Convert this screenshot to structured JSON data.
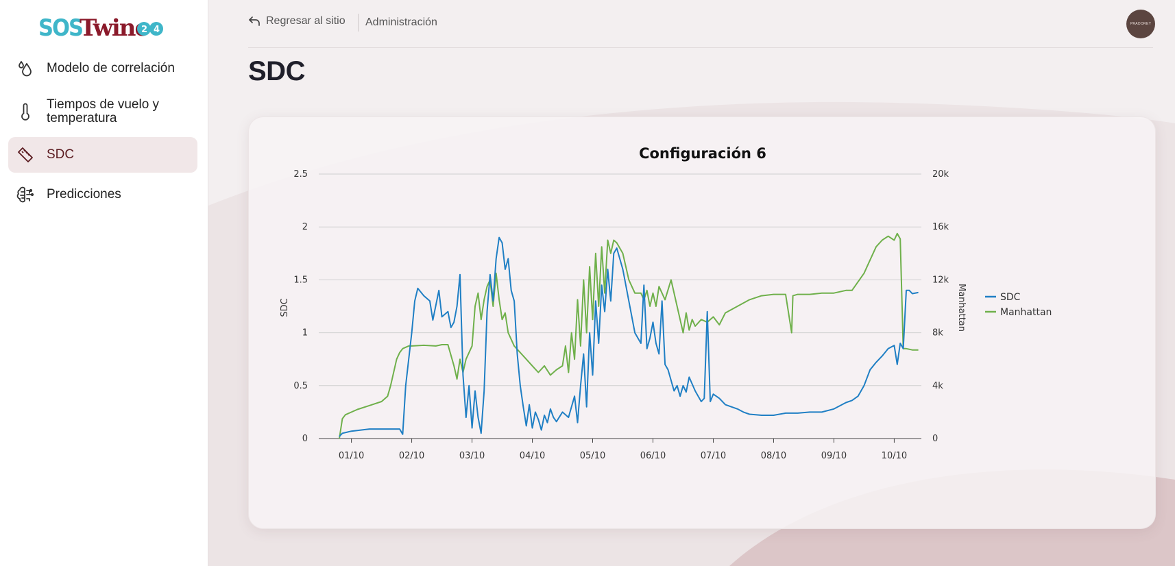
{
  "app": {
    "logo_text": "SOSTwine",
    "logo_badge": "24"
  },
  "sidebar": {
    "items": [
      {
        "label": "Modelo de correlación",
        "icon": "drops-icon",
        "active": false
      },
      {
        "label": "Tiempos de vuelo y temperatura",
        "icon": "thermometer-icon",
        "active": false
      },
      {
        "label": "SDC",
        "icon": "ruler-icon",
        "active": true
      },
      {
        "label": "Predicciones",
        "icon": "brain-icon",
        "active": false
      }
    ]
  },
  "topbar": {
    "back_label": "Regresar al sitio",
    "admin_label": "Administración",
    "avatar_text": "PRADOREY"
  },
  "page": {
    "title": "SDC"
  },
  "colors": {
    "sdc": "#1f7fc4",
    "manhattan": "#6fb04b",
    "active_nav_bg": "#f1e7e8",
    "brand_red": "#8b1a2b",
    "brand_teal": "#3fb6c9"
  },
  "chart_data": {
    "type": "line",
    "title": "Configuración 6",
    "ylabel": "SDC",
    "y2label": "Manhattan",
    "ylim": [
      0,
      2.5
    ],
    "y2lim": [
      0,
      20000
    ],
    "yticks": [
      "0",
      "0.5",
      "1",
      "1.5",
      "2",
      "2.5"
    ],
    "y2ticks": [
      "0",
      "4k",
      "8k",
      "12k",
      "16k",
      "20k"
    ],
    "xticks": [
      "01/10",
      "02/10",
      "03/10",
      "04/10",
      "05/10",
      "06/10",
      "07/10",
      "08/10",
      "09/10",
      "10/10"
    ],
    "xrange": [
      -0.2,
      9.45
    ],
    "grid": true,
    "legend_position": "right",
    "series": [
      {
        "name": "SDC",
        "axis": "left",
        "x": [
          -0.2,
          -0.15,
          0.0,
          0.3,
          0.6,
          0.8,
          0.85,
          0.9,
          1.0,
          1.05,
          1.1,
          1.2,
          1.3,
          1.35,
          1.45,
          1.5,
          1.6,
          1.65,
          1.7,
          1.75,
          1.8,
          1.85,
          1.9,
          1.95,
          2.0,
          2.05,
          2.1,
          2.15,
          2.2,
          2.25,
          2.3,
          2.35,
          2.4,
          2.45,
          2.5,
          2.55,
          2.6,
          2.65,
          2.7,
          2.75,
          2.8,
          2.85,
          2.9,
          2.95,
          3.0,
          3.05,
          3.1,
          3.15,
          3.2,
          3.25,
          3.3,
          3.35,
          3.4,
          3.5,
          3.6,
          3.7,
          3.75,
          3.8,
          3.85,
          3.9,
          3.95,
          4.0,
          4.05,
          4.1,
          4.15,
          4.2,
          4.25,
          4.3,
          4.35,
          4.4,
          4.5,
          4.6,
          4.7,
          4.8,
          4.85,
          4.9,
          4.95,
          5.0,
          5.05,
          5.1,
          5.15,
          5.2,
          5.25,
          5.3,
          5.35,
          5.4,
          5.45,
          5.5,
          5.55,
          5.6,
          5.7,
          5.8,
          5.85,
          5.9,
          5.95,
          6.0,
          6.1,
          6.2,
          6.3,
          6.4,
          6.5,
          6.6,
          6.8,
          7.0,
          7.2,
          7.4,
          7.6,
          7.8,
          8.0,
          8.2,
          8.3,
          8.4,
          8.5,
          8.6,
          8.7,
          8.8,
          8.9,
          9.0,
          9.05,
          9.1,
          9.15,
          9.2,
          9.25,
          9.3,
          9.4
        ],
        "y": [
          0.02,
          0.05,
          0.07,
          0.09,
          0.09,
          0.09,
          0.04,
          0.5,
          1.0,
          1.3,
          1.42,
          1.35,
          1.3,
          1.12,
          1.4,
          1.15,
          1.2,
          1.05,
          1.1,
          1.25,
          1.55,
          0.6,
          0.2,
          0.5,
          0.1,
          0.45,
          0.2,
          0.05,
          0.45,
          1.2,
          1.55,
          1.3,
          1.7,
          1.9,
          1.85,
          1.6,
          1.7,
          1.4,
          1.3,
          0.8,
          0.5,
          0.3,
          0.12,
          0.32,
          0.1,
          0.25,
          0.18,
          0.08,
          0.22,
          0.15,
          0.28,
          0.2,
          0.16,
          0.25,
          0.2,
          0.4,
          0.15,
          0.5,
          0.8,
          0.3,
          1.0,
          0.6,
          1.3,
          0.9,
          1.45,
          1.2,
          1.6,
          1.3,
          1.75,
          1.8,
          1.6,
          1.3,
          1.0,
          0.9,
          1.45,
          0.85,
          0.95,
          1.1,
          0.9,
          0.8,
          1.3,
          0.7,
          0.65,
          0.55,
          0.45,
          0.5,
          0.4,
          0.5,
          0.44,
          0.58,
          0.45,
          0.35,
          0.38,
          1.2,
          0.35,
          0.42,
          0.38,
          0.32,
          0.3,
          0.28,
          0.25,
          0.23,
          0.22,
          0.22,
          0.24,
          0.24,
          0.25,
          0.25,
          0.28,
          0.34,
          0.36,
          0.4,
          0.5,
          0.65,
          0.72,
          0.78,
          0.85,
          0.88,
          0.7,
          0.9,
          0.85,
          1.4,
          1.4,
          1.37,
          1.38
        ]
      },
      {
        "name": "Manhattan",
        "axis": "right",
        "x": [
          -0.2,
          -0.15,
          -0.1,
          0.1,
          0.3,
          0.5,
          0.6,
          0.65,
          0.7,
          0.75,
          0.8,
          0.85,
          0.9,
          0.95,
          1.0,
          1.2,
          1.4,
          1.5,
          1.6,
          1.7,
          1.75,
          1.8,
          1.85,
          1.9,
          2.0,
          2.05,
          2.1,
          2.15,
          2.2,
          2.25,
          2.3,
          2.35,
          2.4,
          2.45,
          2.5,
          2.55,
          2.6,
          2.7,
          2.8,
          2.9,
          3.0,
          3.1,
          3.2,
          3.3,
          3.4,
          3.5,
          3.55,
          3.6,
          3.65,
          3.7,
          3.75,
          3.8,
          3.85,
          3.9,
          3.95,
          4.0,
          4.05,
          4.1,
          4.15,
          4.2,
          4.25,
          4.3,
          4.35,
          4.4,
          4.5,
          4.6,
          4.7,
          4.8,
          4.85,
          4.9,
          4.95,
          5.0,
          5.05,
          5.1,
          5.2,
          5.3,
          5.4,
          5.45,
          5.5,
          5.55,
          5.6,
          5.65,
          5.7,
          5.8,
          5.9,
          6.0,
          6.1,
          6.2,
          6.4,
          6.6,
          6.8,
          7.0,
          7.2,
          7.3,
          7.32,
          7.4,
          7.6,
          7.8,
          8.0,
          8.2,
          8.3,
          8.5,
          8.6,
          8.7,
          8.8,
          8.9,
          9.0,
          9.05,
          9.1,
          9.15,
          9.2,
          9.3,
          9.4
        ],
        "y": [
          0,
          1500,
          1800,
          2200,
          2500,
          2800,
          3200,
          4000,
          5000,
          6000,
          6500,
          6800,
          6900,
          7000,
          7000,
          7050,
          7000,
          7100,
          7100,
          5500,
          4500,
          6000,
          5000,
          6000,
          7000,
          10000,
          11000,
          9000,
          10500,
          11500,
          12000,
          10000,
          12500,
          10500,
          9000,
          9500,
          8000,
          7000,
          6500,
          6000,
          5500,
          5000,
          5500,
          4800,
          5200,
          5500,
          7000,
          5000,
          8000,
          6000,
          10500,
          7000,
          12000,
          8000,
          13000,
          9000,
          14000,
          10000,
          14500,
          11000,
          15000,
          14000,
          15000,
          14800,
          14000,
          12000,
          11000,
          11000,
          10500,
          11200,
          10000,
          11000,
          10000,
          11500,
          10500,
          12000,
          10000,
          9000,
          8000,
          9500,
          8200,
          9000,
          8500,
          9000,
          8800,
          9200,
          8600,
          9500,
          10000,
          10500,
          10800,
          10900,
          10900,
          8000,
          10800,
          10900,
          10900,
          11000,
          11000,
          11200,
          11200,
          12500,
          13500,
          14500,
          15000,
          15300,
          15000,
          15500,
          15100,
          6800,
          6800,
          6700,
          6700
        ]
      }
    ]
  }
}
